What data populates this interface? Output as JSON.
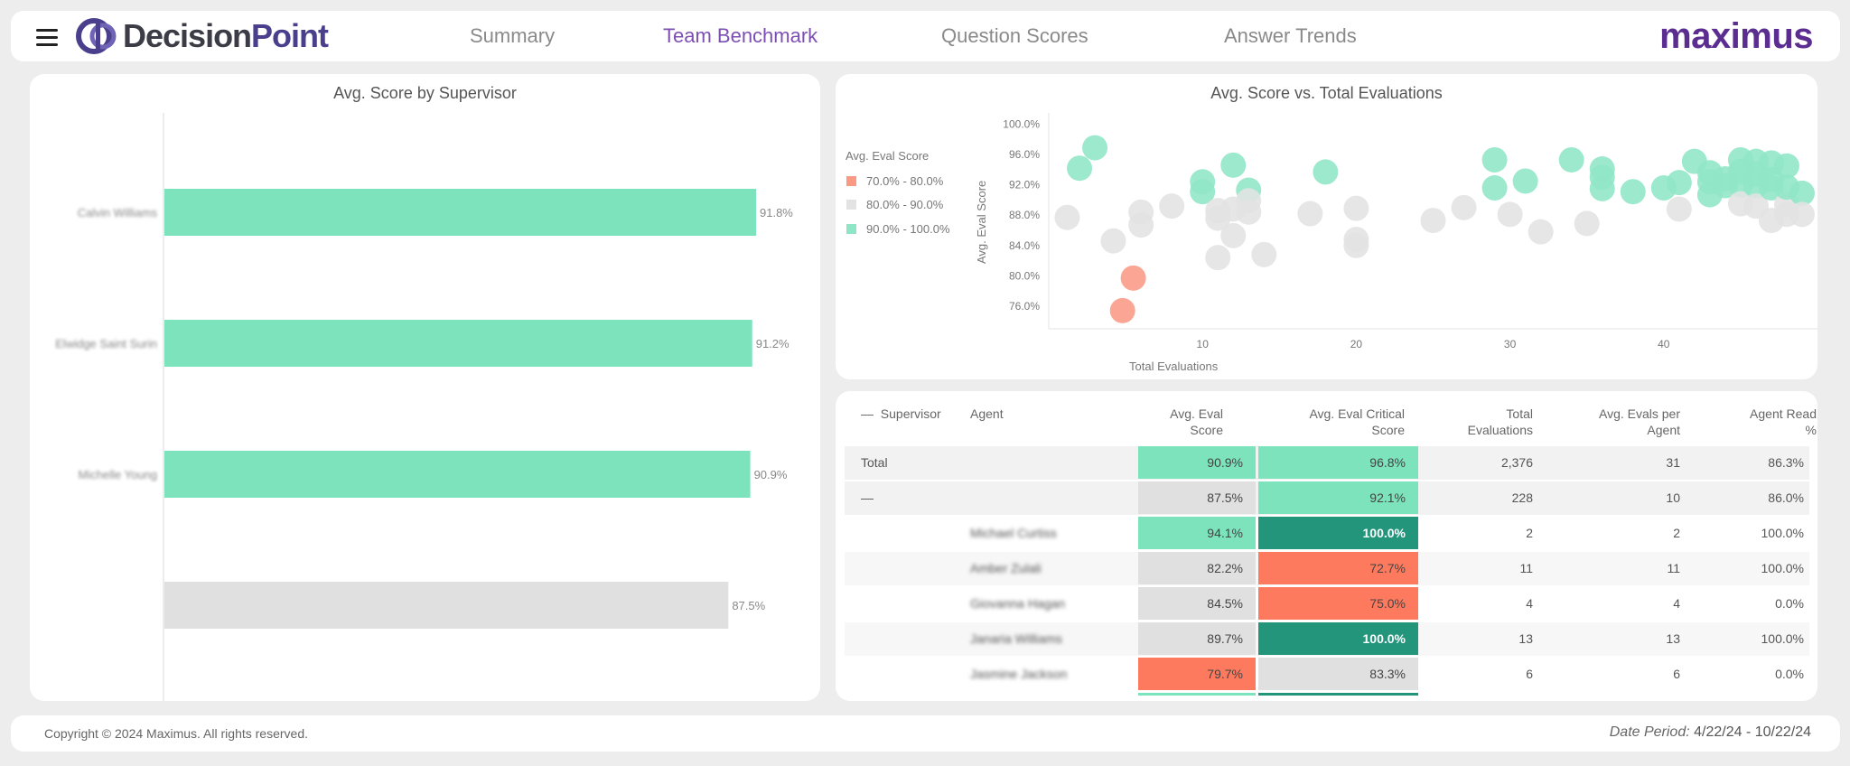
{
  "header": {
    "brand_left": "DecisionPoint",
    "brand_left_part1": "Decision",
    "brand_left_part2": "Point",
    "brand_right": "maximus",
    "tabs": [
      {
        "label": "Summary",
        "active": false
      },
      {
        "label": "Team Benchmark",
        "active": true
      },
      {
        "label": "Question Scores",
        "active": false
      },
      {
        "label": "Answer Trends",
        "active": false
      }
    ]
  },
  "bar_chart": {
    "title": "Avg. Score by Supervisor",
    "chart_data": {
      "type": "bar",
      "orientation": "horizontal",
      "categories": [
        "Calvin Williams",
        "Elwidge Saint Surin",
        "Michelle Young",
        ""
      ],
      "values": [
        91.8,
        91.2,
        90.9,
        87.5
      ],
      "value_labels": [
        "91.8%",
        "91.2%",
        "90.9%",
        "87.5%"
      ],
      "colors": [
        "#7de3bd",
        "#7de3bd",
        "#7de3bd",
        "#e0e0e0"
      ]
    }
  },
  "scatter_chart": {
    "title": "Avg. Score vs. Total Evaluations",
    "legend_title": "Avg. Eval Score",
    "legend": [
      {
        "label": "70.0% - 80.0%",
        "color": "#fa9a85"
      },
      {
        "label": "80.0% - 90.0%",
        "color": "#e3e3e3"
      },
      {
        "label": "90.0% - 100.0%",
        "color": "#8fe6c6"
      }
    ],
    "chart_data": {
      "type": "scatter",
      "xlabel": "Total Evaluations",
      "ylabel": "Avg. Eval Score",
      "xlim": [
        0,
        50
      ],
      "ylim": [
        73,
        101.5
      ],
      "xticks": [
        "10",
        "20",
        "30",
        "40"
      ],
      "yticks": [
        "100.0%",
        "96.0%",
        "92.0%",
        "88.0%",
        "84.0%",
        "80.0%",
        "76.0%"
      ],
      "points": [
        [
          1.2,
          87.7
        ],
        [
          2,
          94.2
        ],
        [
          3,
          96.9
        ],
        [
          4.2,
          84.6
        ],
        [
          6,
          86.7
        ],
        [
          6,
          88.4
        ],
        [
          8,
          89.2
        ],
        [
          10,
          92.4
        ],
        [
          10,
          91.1
        ],
        [
          11,
          87.6
        ],
        [
          11,
          88.6
        ],
        [
          11,
          82.4
        ],
        [
          12,
          88.8
        ],
        [
          12,
          85.3
        ],
        [
          12,
          94.6
        ],
        [
          13,
          91.3
        ],
        [
          13,
          89.9
        ],
        [
          13,
          88.4
        ],
        [
          14,
          82.8
        ],
        [
          17,
          88.2
        ],
        [
          18,
          93.7
        ],
        [
          20,
          88.9
        ],
        [
          20,
          84.8
        ],
        [
          20,
          84.0
        ],
        [
          25,
          87.3
        ],
        [
          27,
          89.0
        ],
        [
          29,
          95.3
        ],
        [
          29,
          91.6
        ],
        [
          30,
          88.1
        ],
        [
          31,
          92.5
        ],
        [
          32,
          85.8
        ],
        [
          34,
          95.3
        ],
        [
          35,
          86.9
        ],
        [
          36,
          94.1
        ],
        [
          36,
          93.0
        ],
        [
          36,
          91.5
        ],
        [
          38,
          91.1
        ],
        [
          40,
          91.6
        ],
        [
          41,
          92.3
        ],
        [
          41,
          88.8
        ],
        [
          42,
          95.1
        ],
        [
          43,
          90.7
        ],
        [
          43,
          93.6
        ],
        [
          43,
          92.4
        ],
        [
          44,
          91.9
        ],
        [
          44,
          92.8
        ],
        [
          45,
          93.8
        ],
        [
          45,
          92.0
        ],
        [
          45,
          89.5
        ],
        [
          45,
          95.3
        ],
        [
          46,
          91.9
        ],
        [
          46,
          93.4
        ],
        [
          46,
          95.1
        ],
        [
          46,
          89.2
        ],
        [
          47,
          92.7
        ],
        [
          47,
          91.6
        ],
        [
          47,
          94.9
        ],
        [
          47,
          87.3
        ],
        [
          48,
          94.5
        ],
        [
          48,
          89.4
        ],
        [
          48,
          91.7
        ],
        [
          48,
          88.1
        ],
        [
          49,
          90.9
        ],
        [
          49,
          88.1
        ],
        [
          5.5,
          79.7
        ],
        [
          4.8,
          75.4
        ]
      ]
    }
  },
  "table": {
    "headers": {
      "supervisor": "Supervisor",
      "agent": "Agent",
      "avg_eval_1": "Avg. Eval",
      "avg_eval_2": "Score",
      "critical_1": "Avg. Eval Critical",
      "critical_2": "Score",
      "total_1": "Total",
      "total_2": "Evaluations",
      "per_agent_1": "Avg. Evals per",
      "per_agent_2": "Agent",
      "read_1": "Agent Read",
      "read_2": "%"
    },
    "collapse_glyph": "—",
    "rows": [
      {
        "supervisor": "Total",
        "agent": "",
        "avg": "90.9%",
        "avg_bg": "#7de3bd",
        "avg_fg": "#444",
        "crit": "96.8%",
        "crit_bg": "#7de3bd",
        "crit_fg": "#444",
        "total": "2,376",
        "per": "31",
        "read": "86.3%",
        "shade": "#f2f2f2"
      },
      {
        "supervisor": "—",
        "agent": "",
        "avg": "87.5%",
        "avg_bg": "#e0e0e0",
        "avg_fg": "#444",
        "crit": "92.1%",
        "crit_bg": "#7de3bd",
        "crit_fg": "#444",
        "total": "228",
        "per": "10",
        "read": "86.0%",
        "shade": "#f2f2f2"
      },
      {
        "supervisor": "",
        "agent": "Michael Curtiss",
        "avg": "94.1%",
        "avg_bg": "#7de3bd",
        "avg_fg": "#444",
        "crit": "100.0%",
        "crit_bg": "#22957b",
        "crit_fg": "#ffffff",
        "total": "2",
        "per": "2",
        "read": "100.0%",
        "shade": "#ffffff"
      },
      {
        "supervisor": "",
        "agent": "Amber Zulali",
        "avg": "82.2%",
        "avg_bg": "#e0e0e0",
        "avg_fg": "#444",
        "crit": "72.7%",
        "crit_bg": "#fe7a5f",
        "crit_fg": "#444",
        "total": "11",
        "per": "11",
        "read": "100.0%",
        "shade": "#f7f7f7"
      },
      {
        "supervisor": "",
        "agent": "Giovanna Hagan",
        "avg": "84.5%",
        "avg_bg": "#e0e0e0",
        "avg_fg": "#444",
        "crit": "75.0%",
        "crit_bg": "#fe7a5f",
        "crit_fg": "#444",
        "total": "4",
        "per": "4",
        "read": "0.0%",
        "shade": "#ffffff"
      },
      {
        "supervisor": "",
        "agent": "Janaria Williams",
        "avg": "89.7%",
        "avg_bg": "#e0e0e0",
        "avg_fg": "#444",
        "crit": "100.0%",
        "crit_bg": "#22957b",
        "crit_fg": "#ffffff",
        "total": "13",
        "per": "13",
        "read": "100.0%",
        "shade": "#f7f7f7"
      },
      {
        "supervisor": "",
        "agent": "Jasmine Jackson",
        "avg": "79.7%",
        "avg_bg": "#fe7a5f",
        "avg_fg": "#444",
        "crit": "83.3%",
        "crit_bg": "#e0e0e0",
        "crit_fg": "#444",
        "total": "6",
        "per": "6",
        "read": "0.0%",
        "shade": "#ffffff"
      }
    ]
  },
  "footer": {
    "copyright": "Copyright © 2024 Maximus. All rights reserved.",
    "date_label": "Date Period:",
    "date_value": " 4/22/24 -  10/22/24"
  }
}
